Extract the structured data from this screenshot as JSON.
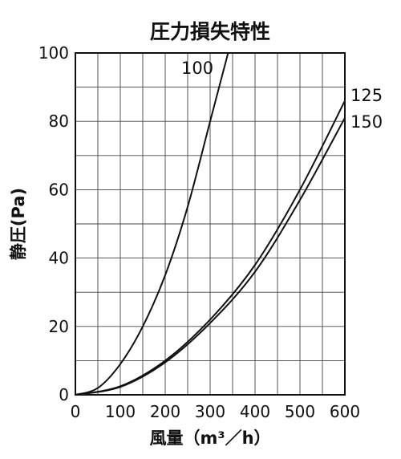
{
  "chart_data": {
    "type": "line",
    "title": "圧力損失特性",
    "xlabel": "風量（m³／h）",
    "ylabel": "静圧(Pa)",
    "xlim": [
      0,
      600
    ],
    "ylim": [
      0,
      100
    ],
    "x_ticks": [
      "0",
      "100",
      "200",
      "300",
      "400",
      "500",
      "600"
    ],
    "y_ticks": [
      "0",
      "20",
      "40",
      "60",
      "80",
      "100"
    ],
    "grid": true,
    "series": [
      {
        "name": "100",
        "x": [
          0,
          50,
          100,
          150,
          200,
          250,
          300,
          340
        ],
        "y": [
          0,
          2,
          9,
          20,
          35,
          55,
          80,
          100
        ]
      },
      {
        "name": "125",
        "x": [
          0,
          100,
          200,
          300,
          400,
          500,
          600
        ],
        "y": [
          0,
          2.5,
          10,
          22,
          38,
          60,
          86
        ]
      },
      {
        "name": "150",
        "x": [
          0,
          100,
          200,
          300,
          400,
          500,
          600
        ],
        "y": [
          0,
          2.3,
          9.5,
          21,
          36,
          57,
          81
        ]
      }
    ]
  }
}
